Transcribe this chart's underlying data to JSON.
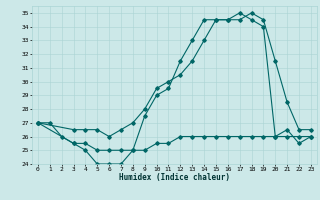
{
  "xlabel": "Humidex (Indice chaleur)",
  "xlim": [
    -0.5,
    23.5
  ],
  "ylim": [
    24,
    35.5
  ],
  "yticks": [
    24,
    25,
    26,
    27,
    28,
    29,
    30,
    31,
    32,
    33,
    34,
    35
  ],
  "xticks": [
    0,
    1,
    2,
    3,
    4,
    5,
    6,
    7,
    8,
    9,
    10,
    11,
    12,
    13,
    14,
    15,
    16,
    17,
    18,
    19,
    20,
    21,
    22,
    23
  ],
  "bg_color": "#cce8e8",
  "grid_color": "#aad4d4",
  "line_color": "#006666",
  "curve1_x": [
    0,
    1,
    2,
    3,
    4,
    5,
    6,
    7,
    8,
    9,
    10,
    11,
    12,
    13,
    14,
    15,
    16,
    17,
    18,
    19,
    20,
    21,
    22,
    23
  ],
  "curve1_y": [
    27.0,
    27.0,
    26.0,
    25.5,
    25.0,
    24.0,
    24.0,
    24.0,
    25.0,
    27.5,
    29.0,
    29.5,
    31.5,
    33.0,
    34.5,
    34.5,
    34.5,
    35.0,
    34.5,
    34.0,
    26.0,
    26.5,
    25.5,
    26.0
  ],
  "curve2_x": [
    0,
    3,
    4,
    5,
    6,
    7,
    8,
    9,
    10,
    11,
    12,
    13,
    14,
    15,
    16,
    17,
    18,
    19,
    20,
    21,
    22,
    23
  ],
  "curve2_y": [
    27.0,
    25.5,
    25.5,
    25.0,
    25.0,
    25.0,
    25.0,
    25.0,
    25.5,
    25.5,
    26.0,
    26.0,
    26.0,
    26.0,
    26.0,
    26.0,
    26.0,
    26.0,
    26.0,
    26.0,
    26.0,
    26.0
  ],
  "curve3_x": [
    0,
    3,
    4,
    5,
    6,
    7,
    8,
    9,
    10,
    11,
    12,
    13,
    14,
    15,
    16,
    17,
    18,
    19,
    20,
    21,
    22,
    23
  ],
  "curve3_y": [
    27.0,
    26.5,
    26.5,
    26.5,
    26.0,
    26.5,
    27.0,
    28.0,
    29.5,
    30.0,
    30.5,
    31.5,
    33.0,
    34.5,
    34.5,
    34.5,
    35.0,
    34.5,
    31.5,
    28.5,
    26.5,
    26.5
  ]
}
